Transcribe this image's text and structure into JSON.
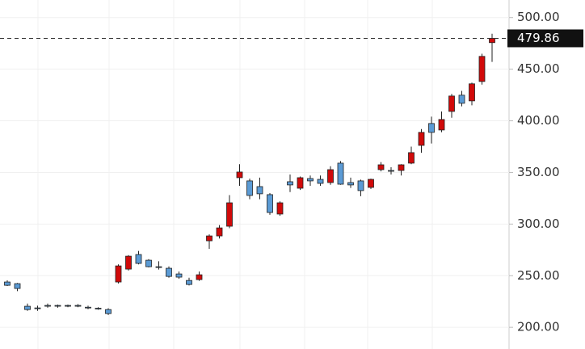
{
  "chart_data": {
    "type": "candlestick",
    "up_color": "#d10a0a",
    "down_color": "#5b9bd5",
    "open": [
      243.9,
      242.3,
      220.4,
      218.8,
      221.2,
      221.2,
      221.2,
      221.2,
      219.5,
      218.5,
      217.2,
      243.9,
      256.4,
      270.5,
      265.0,
      258.7,
      257.2,
      251.7,
      245.4,
      246.2,
      283.8,
      288.5,
      297.9,
      344.9,
      341.8,
      336.3,
      328.5,
      309.7,
      341.0,
      334.7,
      344.1,
      343.3,
      340.2,
      359.0,
      340.2,
      341.8,
      335.5,
      352.7,
      351.9,
      351.9,
      359.0,
      376.2,
      397.4,
      391.1,
      409.1,
      424.8,
      419.3,
      438.1,
      475.7
    ],
    "high": [
      245.5,
      243,
      223,
      221,
      223,
      222,
      222,
      222.5,
      221,
      219.5,
      218.5,
      261,
      270,
      274,
      266,
      264,
      259,
      254,
      248,
      254,
      290,
      299,
      328,
      358,
      344,
      345,
      330,
      322,
      348,
      346,
      347,
      347,
      356,
      361,
      345,
      343,
      344,
      360,
      355,
      358,
      375,
      392,
      404,
      409,
      426,
      429,
      437,
      465,
      484.3
    ],
    "low": [
      240,
      235,
      216,
      216,
      219,
      219,
      219.5,
      219.5,
      217.5,
      217,
      212,
      242.5,
      255,
      261,
      258,
      256,
      248,
      247,
      240.5,
      245,
      276,
      286,
      296,
      337,
      324,
      324,
      309,
      308,
      331,
      333,
      337,
      337,
      338,
      338,
      335,
      327,
      334,
      351,
      348,
      347,
      358,
      369,
      378,
      389,
      403,
      414,
      415,
      435,
      457
    ],
    "close": [
      240.7,
      237.6,
      217.2,
      218.5,
      221.0,
      221.0,
      221.0,
      220.8,
      218.8,
      218.0,
      213.3,
      259.5,
      268.9,
      261.9,
      258.7,
      258.2,
      249.3,
      248.6,
      241.5,
      250.9,
      288.5,
      296.3,
      320.6,
      350.4,
      327.7,
      329.3,
      311.2,
      320.6,
      337.9,
      344.9,
      341.8,
      339.4,
      352.7,
      338.6,
      337.9,
      332.4,
      343.3,
      357.4,
      351.6,
      357.4,
      369.2,
      388.8,
      388.8,
      401.3,
      424.0,
      416.97,
      435.8,
      462.4,
      479.86
    ],
    "last_value": 479.86,
    "ylim": [
      179,
      517
    ],
    "yticks": [
      {
        "value": 200,
        "label": "200.00"
      },
      {
        "value": 250,
        "label": "250.00"
      },
      {
        "value": 300,
        "label": "300.00"
      },
      {
        "value": 350,
        "label": "350.00"
      },
      {
        "value": 400,
        "label": "400.00"
      },
      {
        "value": 450,
        "label": "450.00"
      },
      {
        "value": 500,
        "label": "500.00"
      }
    ],
    "grid": true
  }
}
